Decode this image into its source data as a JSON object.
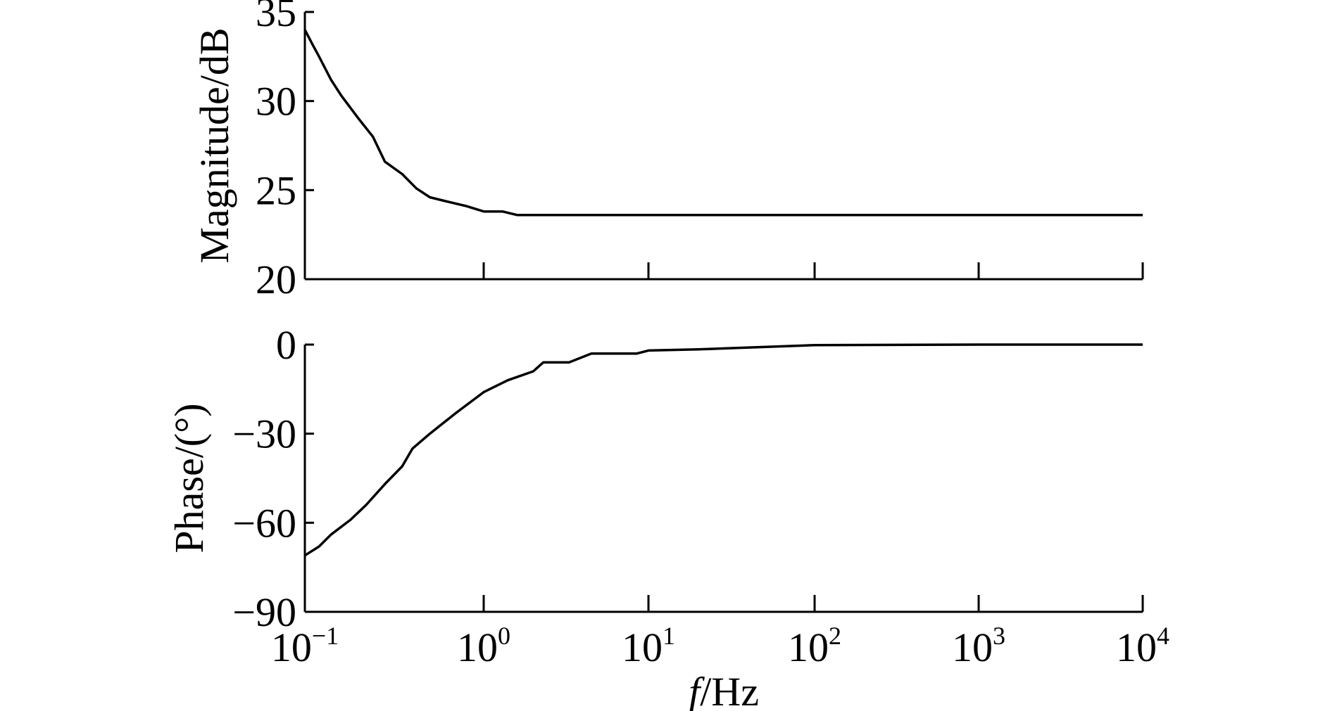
{
  "chart_data": [
    {
      "type": "line",
      "ylabel": "Magnitude/dB",
      "xlabel": "",
      "xscale": "log",
      "xlim": [
        0.1,
        10000
      ],
      "ylim": [
        20,
        35
      ],
      "yticks": [
        20,
        25,
        30,
        35
      ],
      "ytick_labels": [
        "20",
        "25",
        "30",
        "35"
      ],
      "grid": false,
      "series": [
        {
          "x": [
            0.1,
            0.11,
            0.12,
            0.14,
            0.16,
            0.2,
            0.24,
            0.28,
            0.35,
            0.42,
            0.5,
            0.6,
            0.8,
            1.0,
            1.3,
            1.6,
            2,
            5,
            10,
            100,
            1000,
            10000
          ],
          "values": [
            34.0,
            33.2,
            32.5,
            31.2,
            30.3,
            29.0,
            28.0,
            26.6,
            25.9,
            25.1,
            24.6,
            24.4,
            24.1,
            23.8,
            23.8,
            23.6,
            23.6,
            23.6,
            23.6,
            23.6,
            23.6,
            23.6
          ]
        }
      ]
    },
    {
      "type": "line",
      "ylabel": "Phase/(°)",
      "xlabel": "f/Hz",
      "xscale": "log",
      "xlim": [
        0.1,
        10000
      ],
      "ylim": [
        -90,
        0
      ],
      "yticks": [
        -90,
        -60,
        -30,
        0
      ],
      "ytick_labels": [
        "−90",
        "−60",
        "−30",
        "0"
      ],
      "xticks": [
        0.1,
        1,
        10,
        100,
        1000,
        10000
      ],
      "xtick_labels": [
        {
          "base": "10",
          "exp": "−1"
        },
        {
          "base": "10",
          "exp": "0"
        },
        {
          "base": "10",
          "exp": "1"
        },
        {
          "base": "10",
          "exp": "2"
        },
        {
          "base": "10",
          "exp": "3"
        },
        {
          "base": "10",
          "exp": "4"
        }
      ],
      "grid": false,
      "series": [
        {
          "x": [
            0.1,
            0.12,
            0.14,
            0.18,
            0.22,
            0.28,
            0.35,
            0.4,
            0.5,
            0.7,
            1.0,
            1.4,
            2.0,
            2.3,
            3.3,
            4.5,
            8.5,
            10,
            20,
            100,
            1000,
            10000
          ],
          "values": [
            -71,
            -68,
            -64,
            -59,
            -54,
            -47,
            -41,
            -35,
            -30,
            -23,
            -16,
            -12,
            -9,
            -6,
            -6,
            -3,
            -3,
            -2,
            -1.6,
            -0.2,
            0,
            0
          ]
        }
      ]
    }
  ]
}
